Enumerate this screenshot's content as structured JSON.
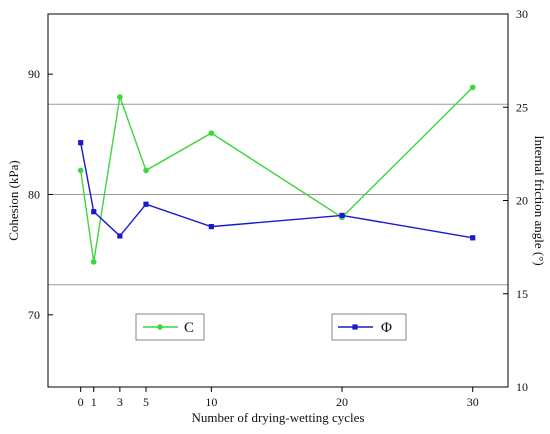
{
  "chart_data": {
    "type": "line",
    "xlabel": "Number of drying-wetting cycles",
    "ylabel_left": "Cohesion (kPa)",
    "ylabel_right": "Internal friction angle (°)",
    "x_ticks": [
      0,
      1,
      3,
      5,
      10,
      20,
      30
    ],
    "x_tick_labels": [
      "0",
      "1",
      "3",
      "5",
      "10",
      "20",
      "30"
    ],
    "ylim_left": [
      64,
      95
    ],
    "ylim_right": [
      10,
      30
    ],
    "y_ticks_left": [
      70,
      80,
      90
    ],
    "y_tick_labels_left": [
      "70",
      "80",
      "90"
    ],
    "y_ticks_right": [
      10,
      15,
      20,
      25,
      30
    ],
    "y_tick_labels_right": [
      "10",
      "15",
      "20",
      "25",
      "30"
    ],
    "grid_lines_left": [
      72.5,
      80,
      87.5
    ],
    "legend_placement": "bottom, inside plot",
    "series": [
      {
        "name": "C",
        "axis": "left",
        "color": "#3dd63d",
        "marker": "circle",
        "x": [
          0,
          1,
          3,
          5,
          10,
          20,
          30
        ],
        "y": [
          82,
          74.4,
          88.1,
          82,
          85.1,
          78.1,
          88.9
        ]
      },
      {
        "name": "Φ",
        "axis": "right",
        "color": "#1a1acc",
        "marker": "square",
        "x": [
          0,
          1,
          3,
          5,
          10,
          20,
          30
        ],
        "y": [
          23.1,
          19.4,
          18.1,
          19.8,
          18.6,
          19.2,
          18
        ]
      }
    ]
  }
}
